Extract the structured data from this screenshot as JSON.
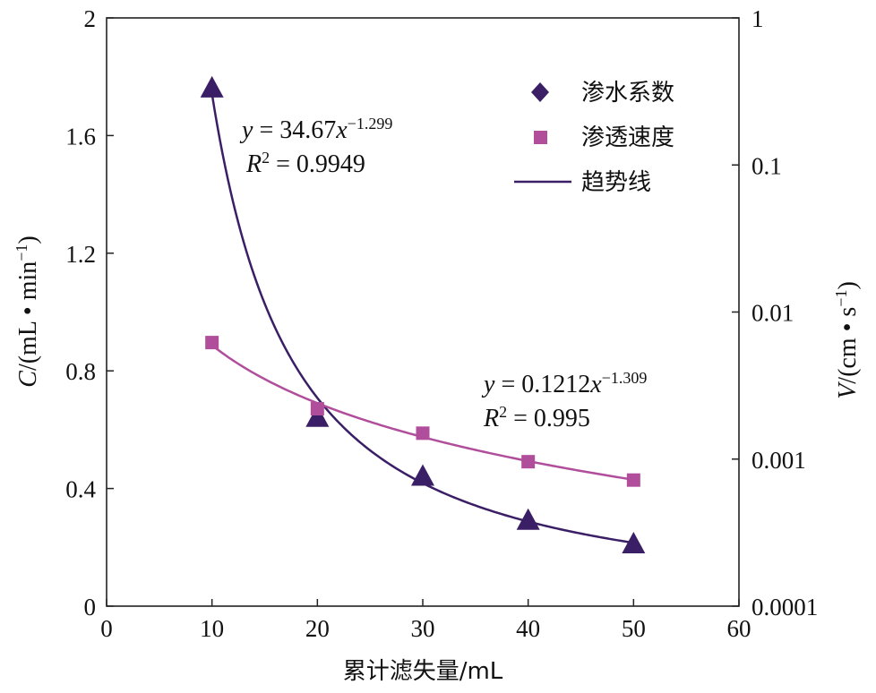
{
  "chart_data": {
    "type": "scatter",
    "x": [
      10,
      20,
      30,
      40,
      50
    ],
    "xlabel": "累计滤失量/mL",
    "xlim": [
      0,
      60
    ],
    "xticks": [
      "0",
      "10",
      "20",
      "30",
      "40",
      "50",
      "60"
    ],
    "ylabel_left": {
      "var": "C",
      "rest": "/(mL • min",
      "exp": "−1",
      "close": ")"
    },
    "ylim_left": [
      0,
      2
    ],
    "yticks_left": [
      "0",
      "0.4",
      "0.8",
      "1.2",
      "1.6",
      "2"
    ],
    "ylabel_right": {
      "var": "V",
      "rest": "/(cm • s",
      "exp": "−1",
      "close": ")"
    },
    "ylim_right": [
      0.0001,
      1
    ],
    "yscale_right": "log",
    "yticks_right": [
      "0.0001",
      "0.001",
      "0.01",
      "0.1",
      "1"
    ],
    "series": [
      {
        "name": "渗水系数",
        "axis": "left",
        "marker": "triangle",
        "color": "#3b1f66",
        "values": [
          1.76,
          0.64,
          0.44,
          0.29,
          0.21
        ],
        "fit": {
          "a": 34.67,
          "b": -1.299,
          "eq_var": "y",
          "eq_main": " = 34.67",
          "eq_x": "x",
          "eq_exp": "−1.299",
          "r2_label": "R",
          "r2_sup": "2",
          "r2_val": " = 0.9949"
        }
      },
      {
        "name": "渗透速度",
        "axis": "right",
        "marker": "square",
        "color": "#b04e9c",
        "values": [
          0.0062,
          0.0022,
          0.0015,
          0.00096,
          0.00072
        ],
        "fit": {
          "a": 0.1212,
          "b": -1.309,
          "eq_var": "y",
          "eq_main": " = 0.1212",
          "eq_x": "x",
          "eq_exp": "−1.309",
          "r2_label": "R",
          "r2_sup": "2",
          "r2_val": " = 0.995"
        }
      }
    ],
    "legend": {
      "position": "top-right",
      "items": [
        "渗水系数",
        "渗透速度",
        "趋势线"
      ]
    },
    "trend_color": "#3b1f66"
  }
}
